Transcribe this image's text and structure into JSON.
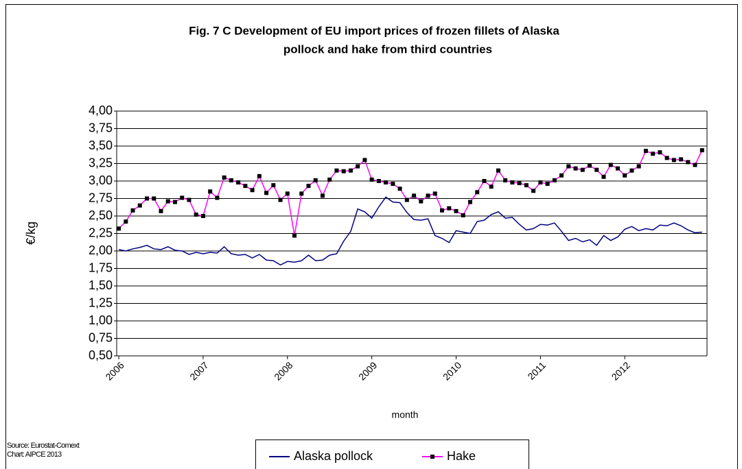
{
  "chart_data": {
    "type": "line",
    "title": [
      "Fig. 7 C   Development of EU import prices of frozen fillets of Alaska",
      "pollock and hake from third countries"
    ],
    "ylabel": "€/kg",
    "xlabel": "month",
    "notes": [
      "Source: Eurostat-Comext",
      "Chart: AIPCE 2013"
    ],
    "categories": [
      "2006",
      null,
      null,
      null,
      null,
      null,
      null,
      null,
      null,
      null,
      null,
      null,
      "2007",
      null,
      null,
      null,
      null,
      null,
      null,
      null,
      null,
      null,
      null,
      null,
      "2008",
      null,
      null,
      null,
      null,
      null,
      null,
      null,
      null,
      null,
      null,
      null,
      "2009",
      null,
      null,
      null,
      null,
      null,
      null,
      null,
      null,
      null,
      null,
      null,
      "2010",
      null,
      null,
      null,
      null,
      null,
      null,
      null,
      null,
      null,
      null,
      null,
      "2011",
      null,
      null,
      null,
      null,
      null,
      null,
      null,
      null,
      null,
      null,
      null,
      "2012",
      null,
      null,
      null,
      null,
      null,
      null,
      null,
      null,
      null,
      null,
      null
    ],
    "series": [
      {
        "name": "Alaska pollock",
        "color": "#000080",
        "marker": false,
        "values": [
          2.02,
          2.0,
          2.03,
          2.05,
          2.08,
          2.03,
          2.02,
          2.06,
          2.01,
          2.0,
          1.95,
          1.98,
          1.96,
          1.98,
          1.97,
          2.06,
          1.96,
          1.94,
          1.95,
          1.9,
          1.95,
          1.87,
          1.86,
          1.8,
          1.85,
          1.84,
          1.86,
          1.94,
          1.86,
          1.87,
          1.94,
          1.96,
          2.14,
          2.28,
          2.6,
          2.56,
          2.47,
          2.63,
          2.77,
          2.7,
          2.69,
          2.55,
          2.45,
          2.44,
          2.46,
          2.22,
          2.18,
          2.12,
          2.29,
          2.27,
          2.25,
          2.42,
          2.44,
          2.52,
          2.56,
          2.47,
          2.48,
          2.38,
          2.3,
          2.32,
          2.38,
          2.37,
          2.4,
          2.28,
          2.15,
          2.18,
          2.13,
          2.16,
          2.08,
          2.22,
          2.15,
          2.2,
          2.31,
          2.35,
          2.29,
          2.32,
          2.3,
          2.37,
          2.36,
          2.4,
          2.36,
          2.3,
          2.26,
          2.27
        ]
      },
      {
        "name": "Hake",
        "color": "#ff00ff",
        "marker": true,
        "values": [
          2.32,
          2.42,
          2.58,
          2.65,
          2.75,
          2.75,
          2.57,
          2.71,
          2.7,
          2.76,
          2.73,
          2.52,
          2.5,
          2.85,
          2.76,
          3.05,
          3.01,
          2.98,
          2.93,
          2.87,
          3.07,
          2.83,
          2.94,
          2.73,
          2.82,
          2.22,
          2.82,
          2.93,
          3.01,
          2.79,
          3.02,
          3.15,
          3.14,
          3.15,
          3.21,
          3.3,
          3.02,
          3.0,
          2.98,
          2.96,
          2.89,
          2.73,
          2.79,
          2.71,
          2.79,
          2.82,
          2.58,
          2.61,
          2.57,
          2.51,
          2.7,
          2.84,
          3.0,
          2.92,
          3.15,
          3.01,
          2.98,
          2.97,
          2.94,
          2.86,
          2.98,
          2.96,
          3.01,
          3.08,
          3.21,
          3.18,
          3.16,
          3.22,
          3.16,
          3.06,
          3.23,
          3.18,
          3.08,
          3.15,
          3.21,
          3.43,
          3.39,
          3.41,
          3.33,
          3.3,
          3.31,
          3.27,
          3.23,
          3.44
        ]
      }
    ],
    "ylim": [
      0.5,
      4.0
    ],
    "yticks": [
      {
        "value": 0.5,
        "label": "0,50"
      },
      {
        "value": 0.75,
        "label": "0,75"
      },
      {
        "value": 1.0,
        "label": "1,00"
      },
      {
        "value": 1.25,
        "label": "1,25"
      },
      {
        "value": 1.5,
        "label": "1,50"
      },
      {
        "value": 1.75,
        "label": "1,75"
      },
      {
        "value": 2.0,
        "label": "2,00"
      },
      {
        "value": 2.25,
        "label": "2,25"
      },
      {
        "value": 2.5,
        "label": "2,50"
      },
      {
        "value": 2.75,
        "label": "2,75"
      },
      {
        "value": 3.0,
        "label": "3,00"
      },
      {
        "value": 3.25,
        "label": "3,25"
      },
      {
        "value": 3.5,
        "label": "3,50"
      },
      {
        "value": 3.75,
        "label": "3,75"
      },
      {
        "value": 4.0,
        "label": "4,00"
      }
    ],
    "grid": true,
    "legend": "bottom"
  }
}
